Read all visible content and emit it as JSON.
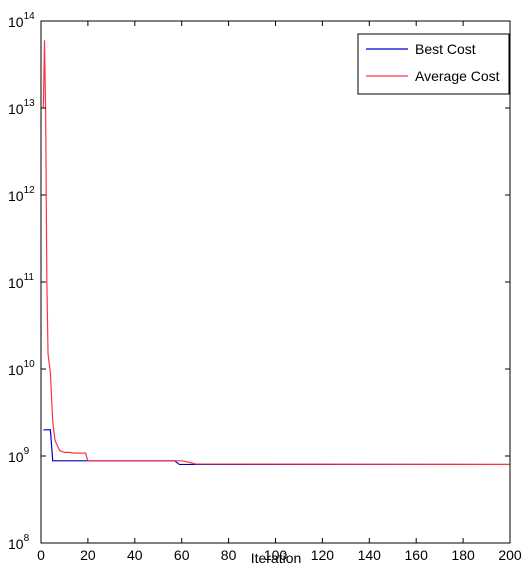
{
  "chart_data": {
    "type": "line",
    "title": "",
    "xlabel": "Iteration",
    "ylabel": "",
    "xscale": "linear",
    "yscale": "log",
    "xlim": [
      0,
      200
    ],
    "ylim": [
      100000000,
      100000000000000
    ],
    "grid": false,
    "legend_position": "top-right",
    "x_ticks": [
      0,
      20,
      40,
      60,
      80,
      100,
      120,
      140,
      160,
      180,
      200
    ],
    "x_tick_labels": [
      "0",
      "20",
      "40",
      "60",
      "80",
      "100",
      "120",
      "140",
      "160",
      "180",
      "200"
    ],
    "y_ticks": [
      100000000,
      1000000000,
      10000000000,
      100000000000,
      1000000000000,
      10000000000000,
      100000000000000
    ],
    "y_tick_labels": [
      {
        "base": "10",
        "exp": "8"
      },
      {
        "base": "10",
        "exp": "9"
      },
      {
        "base": "10",
        "exp": "10"
      },
      {
        "base": "10",
        "exp": "11"
      },
      {
        "base": "10",
        "exp": "12"
      },
      {
        "base": "10",
        "exp": "13"
      },
      {
        "base": "10",
        "exp": "14"
      }
    ],
    "series": [
      {
        "name": "Best Cost",
        "color": "#0000cc",
        "points": [
          [
            1,
            2000000000
          ],
          [
            4,
            2000000000
          ],
          [
            5,
            880000000
          ],
          [
            20,
            880000000
          ],
          [
            57,
            880000000
          ],
          [
            59,
            800000000
          ],
          [
            200,
            800000000
          ]
        ]
      },
      {
        "name": "Average Cost",
        "color": "#ff3344",
        "points": [
          [
            1,
            10000000000000
          ],
          [
            1.5,
            60000000000000
          ],
          [
            2,
            8000000000000
          ],
          [
            2.5,
            100000000000
          ],
          [
            3,
            15000000000
          ],
          [
            4,
            9000000000
          ],
          [
            5,
            2500000000
          ],
          [
            6,
            1500000000
          ],
          [
            8,
            1150000000
          ],
          [
            10,
            1100000000
          ],
          [
            12,
            1100000000
          ],
          [
            14,
            1080000000
          ],
          [
            19,
            1080000000
          ],
          [
            20,
            880000000
          ],
          [
            60,
            880000000
          ],
          [
            63,
            850000000
          ],
          [
            66,
            810000000
          ],
          [
            200,
            800000000
          ]
        ]
      }
    ]
  }
}
